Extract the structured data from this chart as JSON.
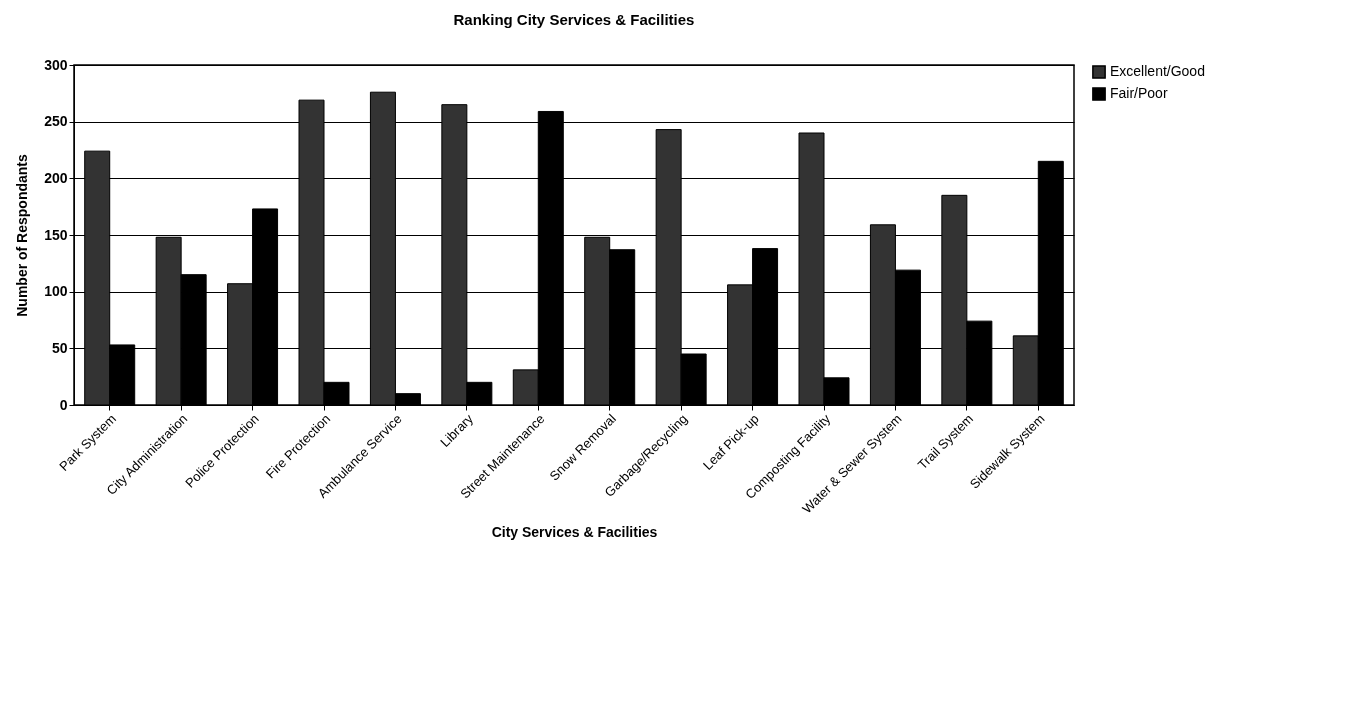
{
  "chart_data": {
    "type": "bar",
    "title": "Ranking City Services & Facilities",
    "xlabel": "City Services & Facilities",
    "ylabel": "Number of Respondants",
    "categories": [
      "Park System",
      "City Administration",
      "Police Protection",
      "Fire Protection",
      "Ambulance Service",
      "Library",
      "Street Maintenance",
      "Snow Removal",
      "Garbage/Recycling",
      "Leaf Pick-up",
      "Composting Facility",
      "Water & Sewer System",
      "Trail System",
      "Sidewalk System"
    ],
    "series": [
      {
        "name": "Excellent/Good",
        "color": "#333333",
        "values": [
          224,
          148,
          107,
          269,
          276,
          265,
          31,
          148,
          243,
          106,
          240,
          159,
          185,
          61
        ]
      },
      {
        "name": "Fair/Poor",
        "color": "#000000",
        "values": [
          53,
          115,
          173,
          20,
          10,
          20,
          259,
          137,
          45,
          138,
          24,
          119,
          74,
          215
        ]
      }
    ],
    "ylim": [
      0,
      300
    ],
    "yticks": [
      0,
      50,
      100,
      150,
      200,
      250,
      300
    ],
    "grid": "y",
    "legend": "right"
  }
}
